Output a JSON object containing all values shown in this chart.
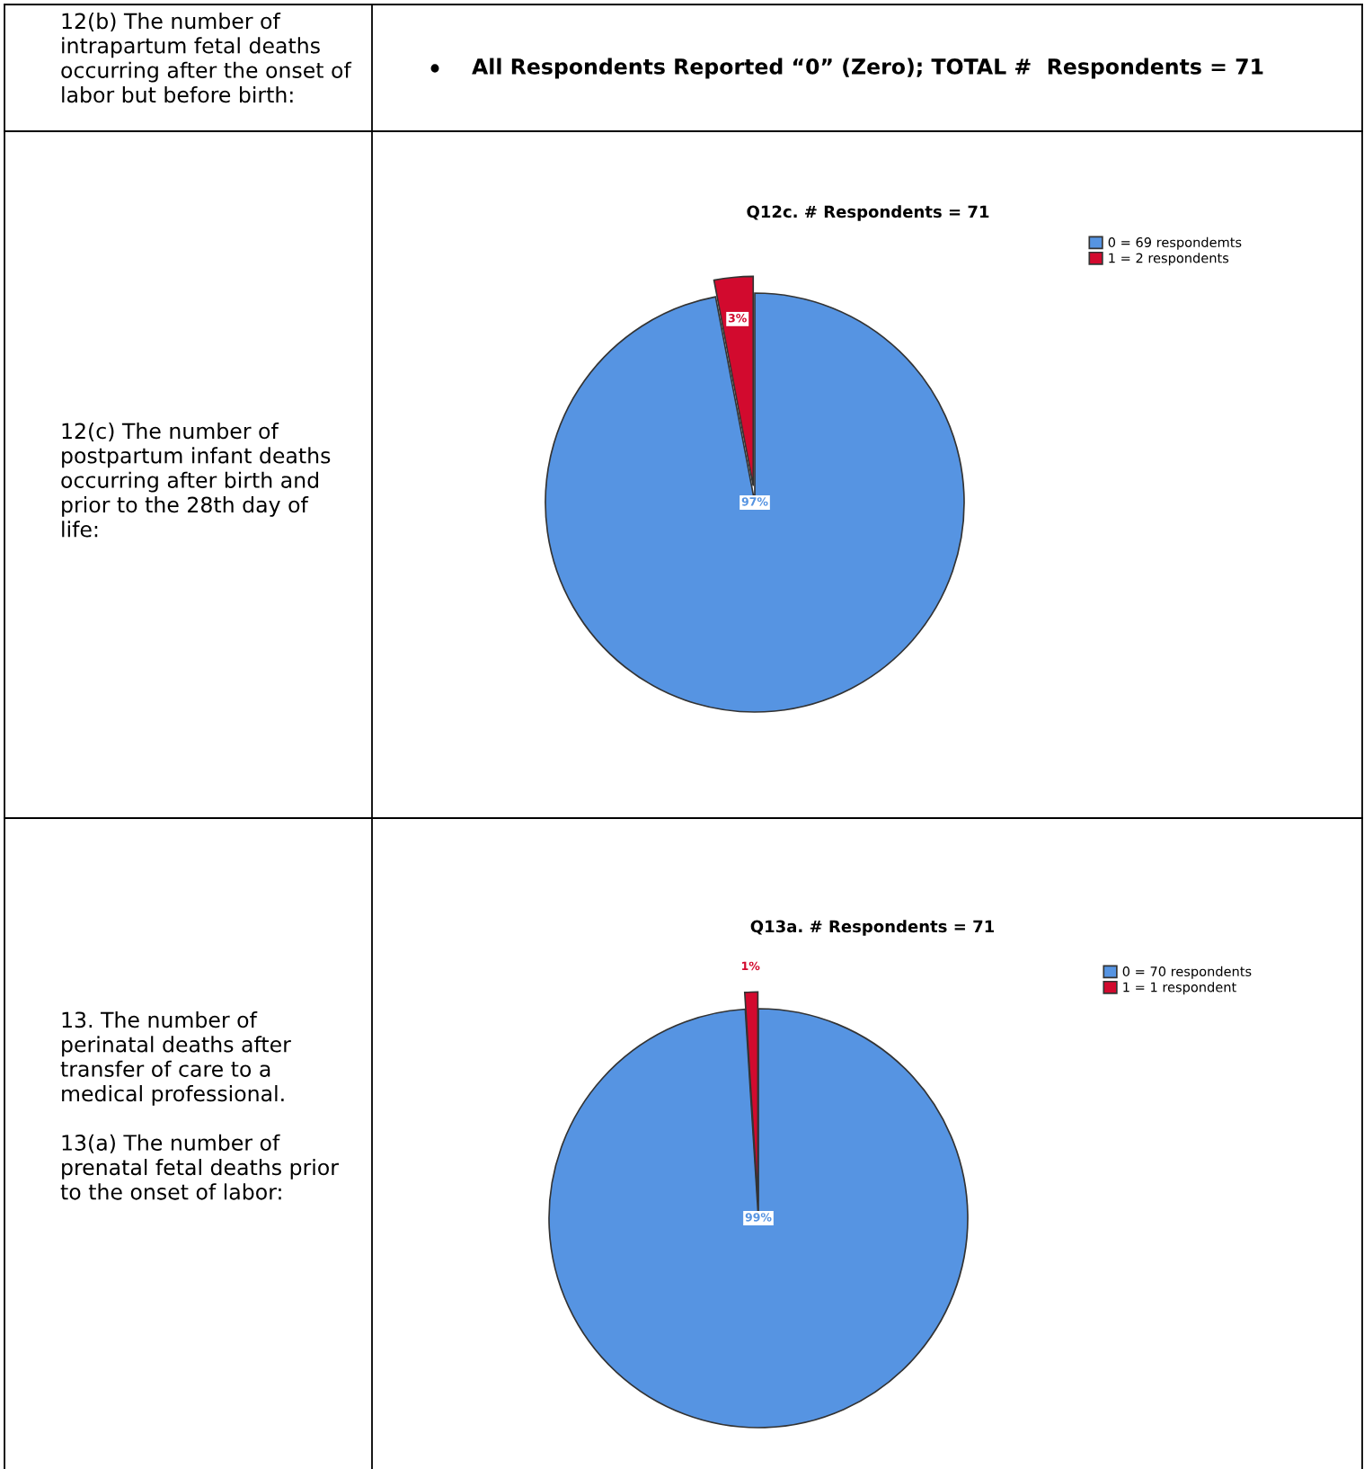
{
  "chart_data": [
    {
      "type": "other",
      "annotations": [
        "12(b) The number of\nintrapartum fetal deaths\noccurring after the onset of\nlabor but before birth:",
        "All Respondents Reported “0” (Zero); TOTAL #  Respondents = 71"
      ]
    },
    {
      "type": "pie",
      "title": "Q12c. # Respondents = 71",
      "categories": [
        "0 = 69 respondemts",
        "1 = 2 respondents"
      ],
      "values": [
        97,
        3
      ],
      "value_labels": [
        "97%",
        "3%"
      ],
      "colors": [
        "#5694e2",
        "#d20a2e"
      ],
      "legend": "top right",
      "annotations": [
        "12(c) The number of\npostpartum infant deaths\noccurring after birth and\nprior to the 28th day of\nlife:"
      ]
    },
    {
      "type": "pie",
      "title": "Q13a. # Respondents = 71",
      "categories": [
        "0 = 70 respondents",
        "1 = 1 respondent"
      ],
      "values": [
        99,
        1
      ],
      "value_labels": [
        "99%",
        "1%"
      ],
      "colors": [
        "#5694e2",
        "#d20a2e"
      ],
      "legend": "top right",
      "annotations": [
        "13. The number of\nperinatal deaths after\ntransfer of care to a\nmedical professional.\n\n13(a) The number of\nprenatal fetal deaths prior\nto the onset of labor:"
      ]
    }
  ]
}
